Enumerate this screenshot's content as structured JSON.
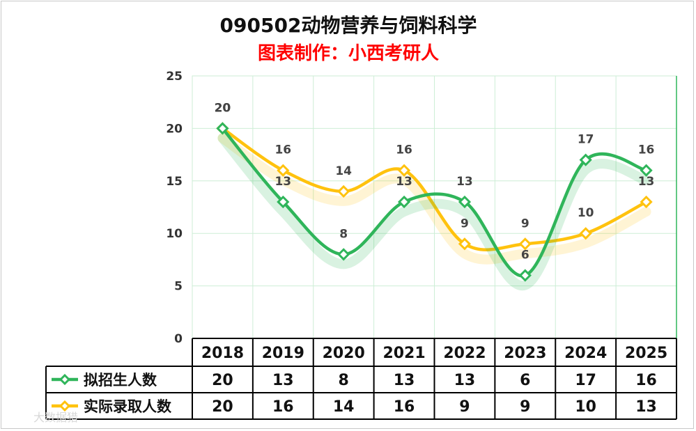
{
  "chart_data": {
    "type": "line",
    "title": "090502动物营养与饲料科学",
    "subtitle": "图表制作：小西考研人",
    "categories": [
      "2018",
      "2019",
      "2020",
      "2021",
      "2022",
      "2023",
      "2024",
      "2025"
    ],
    "series": [
      {
        "name": "拟招生人数",
        "values": [
          20,
          13,
          8,
          13,
          13,
          6,
          17,
          16
        ],
        "color": "#2fb55a"
      },
      {
        "name": "实际录取人数",
        "values": [
          20,
          16,
          14,
          16,
          9,
          9,
          10,
          13
        ],
        "color": "#ffc20e"
      }
    ],
    "ylim": [
      0,
      25
    ],
    "yticks": [
      0,
      5,
      10,
      15,
      20,
      25
    ],
    "grid": true,
    "smooth": true,
    "legend": "data-table",
    "marker": "diamond"
  },
  "watermark": "大数据猎"
}
